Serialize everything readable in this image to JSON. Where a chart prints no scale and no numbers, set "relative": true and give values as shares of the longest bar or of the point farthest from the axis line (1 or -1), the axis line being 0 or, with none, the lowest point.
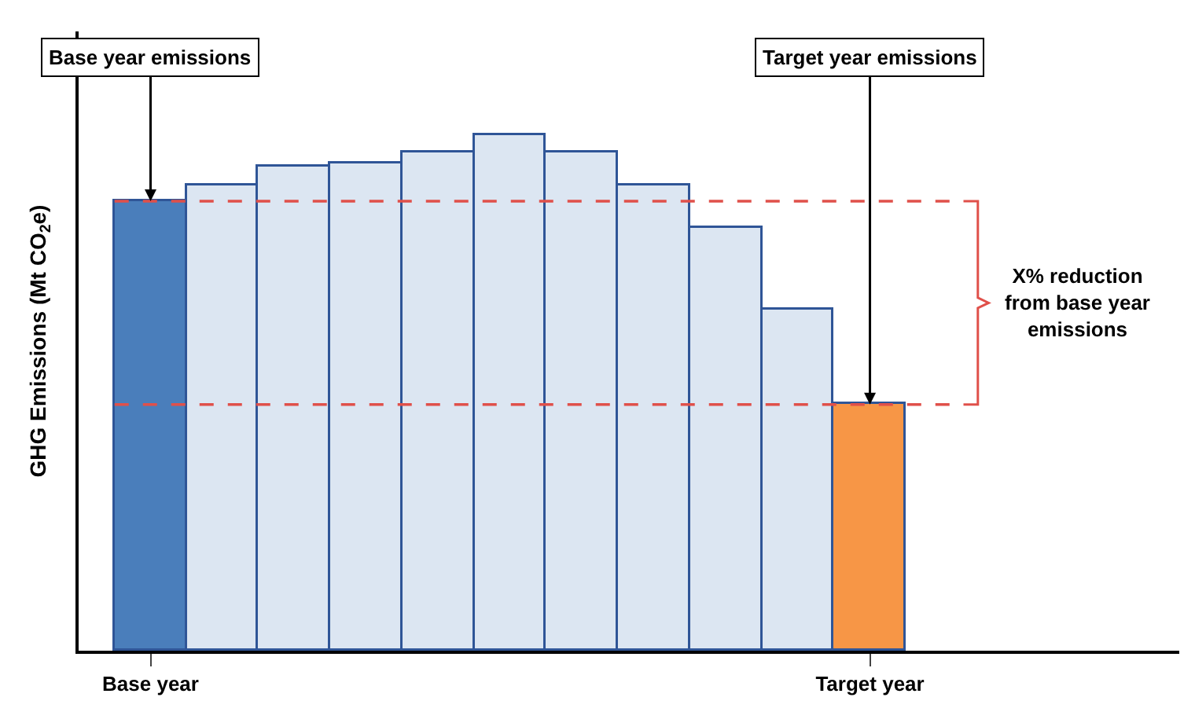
{
  "chart_data": {
    "type": "bar",
    "relative": true,
    "ylabel": "GHG Emissions (Mt CO$_{2}$e)",
    "categories": [
      "Base year",
      null,
      null,
      null,
      null,
      null,
      null,
      null,
      null,
      null,
      "Target year"
    ],
    "values": [
      0.871,
      0.901,
      0.937,
      0.945,
      0.967,
      1,
      0.967,
      0.901,
      0.819,
      0.66,
      0.477
    ],
    "colors": [
      "#4a7ebb",
      "#dce6f2",
      "#dce6f2",
      "#dce6f2",
      "#dce6f2",
      "#dce6f2",
      "#dce6f2",
      "#dce6f2",
      "#dce6f2",
      "#dce6f2",
      "#f79646"
    ],
    "ref_lines": [
      {
        "axis": "y",
        "value": 0.871,
        "color": "#e0504a",
        "line_style": "dashed"
      },
      {
        "axis": "y",
        "value": 0.477,
        "color": "#e0504a",
        "line_style": "dashed"
      }
    ],
    "annotations": [
      {
        "text": "Base year emissions",
        "x": "Base year",
        "y": 0.871
      },
      {
        "text": "Target year emissions",
        "x": "Target year",
        "y": 0.477
      },
      "X% reduction from base year emissions"
    ],
    "tick_labels": "x"
  }
}
